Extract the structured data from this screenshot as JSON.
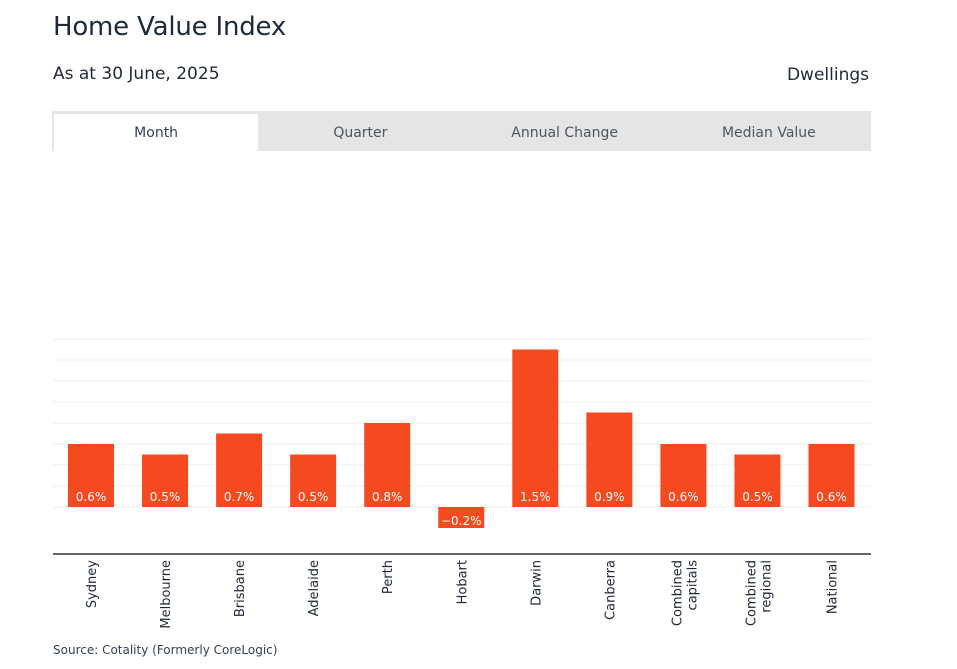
{
  "header": {
    "title": "Home Value Index",
    "date": "As at 30 June, 2025",
    "segment": "Dwellings"
  },
  "tabs": [
    {
      "label": "Month",
      "active": true
    },
    {
      "label": "Quarter",
      "active": false
    },
    {
      "label": "Annual Change",
      "active": false
    },
    {
      "label": "Median Value",
      "active": false
    }
  ],
  "chart_data": {
    "type": "bar",
    "categories": [
      "Sydney",
      "Melbourne",
      "Brisbane",
      "Adelaide",
      "Perth",
      "Hobart",
      "Darwin",
      "Canberra",
      "Combined capitals",
      "Combined regional",
      "National"
    ],
    "category_lines": [
      [
        "Sydney"
      ],
      [
        "Melbourne"
      ],
      [
        "Brisbane"
      ],
      [
        "Adelaide"
      ],
      [
        "Perth"
      ],
      [
        "Hobart"
      ],
      [
        "Darwin"
      ],
      [
        "Canberra"
      ],
      [
        "Combined",
        "capitals"
      ],
      [
        "Combined",
        "regional"
      ],
      [
        "National"
      ]
    ],
    "values": [
      0.6,
      0.5,
      0.7,
      0.5,
      0.8,
      -0.2,
      1.5,
      0.9,
      0.6,
      0.5,
      0.6
    ],
    "value_labels": [
      "0.6%",
      "0.5%",
      "0.7%",
      "0.5%",
      "0.8%",
      "−0.2%",
      "1.5%",
      "0.9%",
      "0.6%",
      "0.5%",
      "0.6%"
    ],
    "unit": "%",
    "ylim": [
      -0.2,
      1.6
    ],
    "grid": true,
    "bar_color": "#f54a20",
    "grid_color": "#ececec",
    "axis_color": "#333333",
    "label_color": "#ffffff"
  },
  "footer": {
    "source": "Source: Cotality (Formerly CoreLogic)"
  }
}
